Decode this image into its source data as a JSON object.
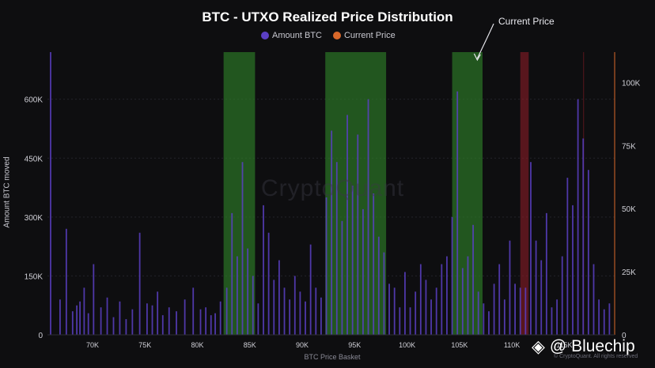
{
  "chart_data": {
    "type": "bar",
    "title": "BTC - UTXO Realized Price Distribution",
    "legend": [
      {
        "label": "Amount BTC",
        "color": "#5b3fc4"
      },
      {
        "label": "Current Price",
        "color": "#d9682a"
      }
    ],
    "xlabel": "BTC Price Basket",
    "ylabel": "Amount BTC moved",
    "xlim": [
      65700,
      119800
    ],
    "x_ticks": [
      {
        "v": 70000,
        "label": "70K"
      },
      {
        "v": 75000,
        "label": "75K"
      },
      {
        "v": 80000,
        "label": "80K"
      },
      {
        "v": 85000,
        "label": "85K"
      },
      {
        "v": 90000,
        "label": "90K"
      },
      {
        "v": 95000,
        "label": "95K"
      },
      {
        "v": 100000,
        "label": "100K"
      },
      {
        "v": 105000,
        "label": "105K"
      },
      {
        "v": 110000,
        "label": "110K"
      },
      {
        "v": 115000,
        "label": "115K"
      }
    ],
    "y_left": {
      "min": 0,
      "max": 720000,
      "ticks": [
        {
          "v": 0,
          "label": "0"
        },
        {
          "v": 150000,
          "label": "150K"
        },
        {
          "v": 300000,
          "label": "300K"
        },
        {
          "v": 450000,
          "label": "450K"
        },
        {
          "v": 600000,
          "label": "600K"
        }
      ]
    },
    "y_right": {
      "min": 0,
      "max": 112000,
      "ticks": [
        {
          "v": 0,
          "label": "0"
        },
        {
          "v": 25000,
          "label": "25K"
        },
        {
          "v": 50000,
          "label": "50K"
        },
        {
          "v": 75000,
          "label": "75K"
        },
        {
          "v": 100000,
          "label": "100K"
        }
      ]
    },
    "highlight_zones": [
      {
        "from": 82500,
        "to": 85500,
        "color": "green"
      },
      {
        "from": 92200,
        "to": 98000,
        "color": "green"
      },
      {
        "from": 104300,
        "to": 107200,
        "color": "green"
      },
      {
        "from": 110800,
        "to": 111600,
        "color": "red"
      },
      {
        "from": 116800,
        "to": 120900,
        "color": "red"
      }
    ],
    "series": [
      {
        "name": "Amount BTC",
        "color": "#5b3fc4",
        "x": [
          66000,
          66900,
          67500,
          68100,
          68500,
          68800,
          69200,
          69600,
          70100,
          70800,
          71400,
          72000,
          72600,
          73200,
          73800,
          74500,
          75200,
          75700,
          76200,
          76700,
          77300,
          78000,
          78800,
          79600,
          80300,
          80800,
          81300,
          81700,
          82200,
          82800,
          83300,
          83800,
          84300,
          84800,
          85300,
          85800,
          86300,
          86800,
          87300,
          87800,
          88300,
          88800,
          89300,
          89800,
          90300,
          90800,
          91300,
          91800,
          92300,
          92800,
          93300,
          93800,
          94300,
          94800,
          95300,
          95800,
          96300,
          96800,
          97300,
          97800,
          98300,
          98800,
          99300,
          99800,
          100300,
          100800,
          101300,
          101800,
          102300,
          102800,
          103300,
          103800,
          104300,
          104800,
          105300,
          105800,
          106300,
          106800,
          107300,
          107800,
          108300,
          108800,
          109300,
          109800,
          110300,
          110800,
          111300,
          111800,
          112300,
          112800,
          113300,
          113800,
          114300,
          114800,
          115300,
          115800,
          116300,
          116800,
          117300,
          117800,
          118300,
          118800,
          119300
        ],
        "values": [
          720000,
          90000,
          270000,
          60000,
          75000,
          85000,
          120000,
          55000,
          180000,
          70000,
          95000,
          45000,
          85000,
          40000,
          65000,
          260000,
          80000,
          75000,
          110000,
          50000,
          70000,
          60000,
          90000,
          120000,
          65000,
          70000,
          50000,
          55000,
          85000,
          120000,
          310000,
          200000,
          440000,
          220000,
          150000,
          80000,
          330000,
          260000,
          140000,
          190000,
          120000,
          90000,
          150000,
          110000,
          85000,
          230000,
          120000,
          95000,
          350000,
          520000,
          440000,
          290000,
          560000,
          380000,
          510000,
          320000,
          600000,
          360000,
          250000,
          210000,
          130000,
          120000,
          70000,
          160000,
          70000,
          110000,
          180000,
          140000,
          90000,
          120000,
          180000,
          200000,
          300000,
          620000,
          170000,
          200000,
          280000,
          110000,
          80000,
          60000,
          130000,
          180000,
          90000,
          240000,
          130000,
          120000,
          120000,
          440000,
          240000,
          190000,
          310000,
          70000,
          90000,
          200000,
          400000,
          330000,
          600000,
          500000,
          420000,
          180000,
          90000,
          65000,
          80000
        ]
      },
      {
        "name": "Current Price",
        "color": "#d9682a",
        "axis": "right",
        "values": []
      }
    ],
    "annotations": [
      {
        "text": "Current Price",
        "target_x": 106700
      }
    ]
  },
  "watermark": "CryptoQuant",
  "brand": {
    "glyph": "◈",
    "handle": "@ Bluechip"
  },
  "copyright": "© CryptoQuant. All rights reserved"
}
